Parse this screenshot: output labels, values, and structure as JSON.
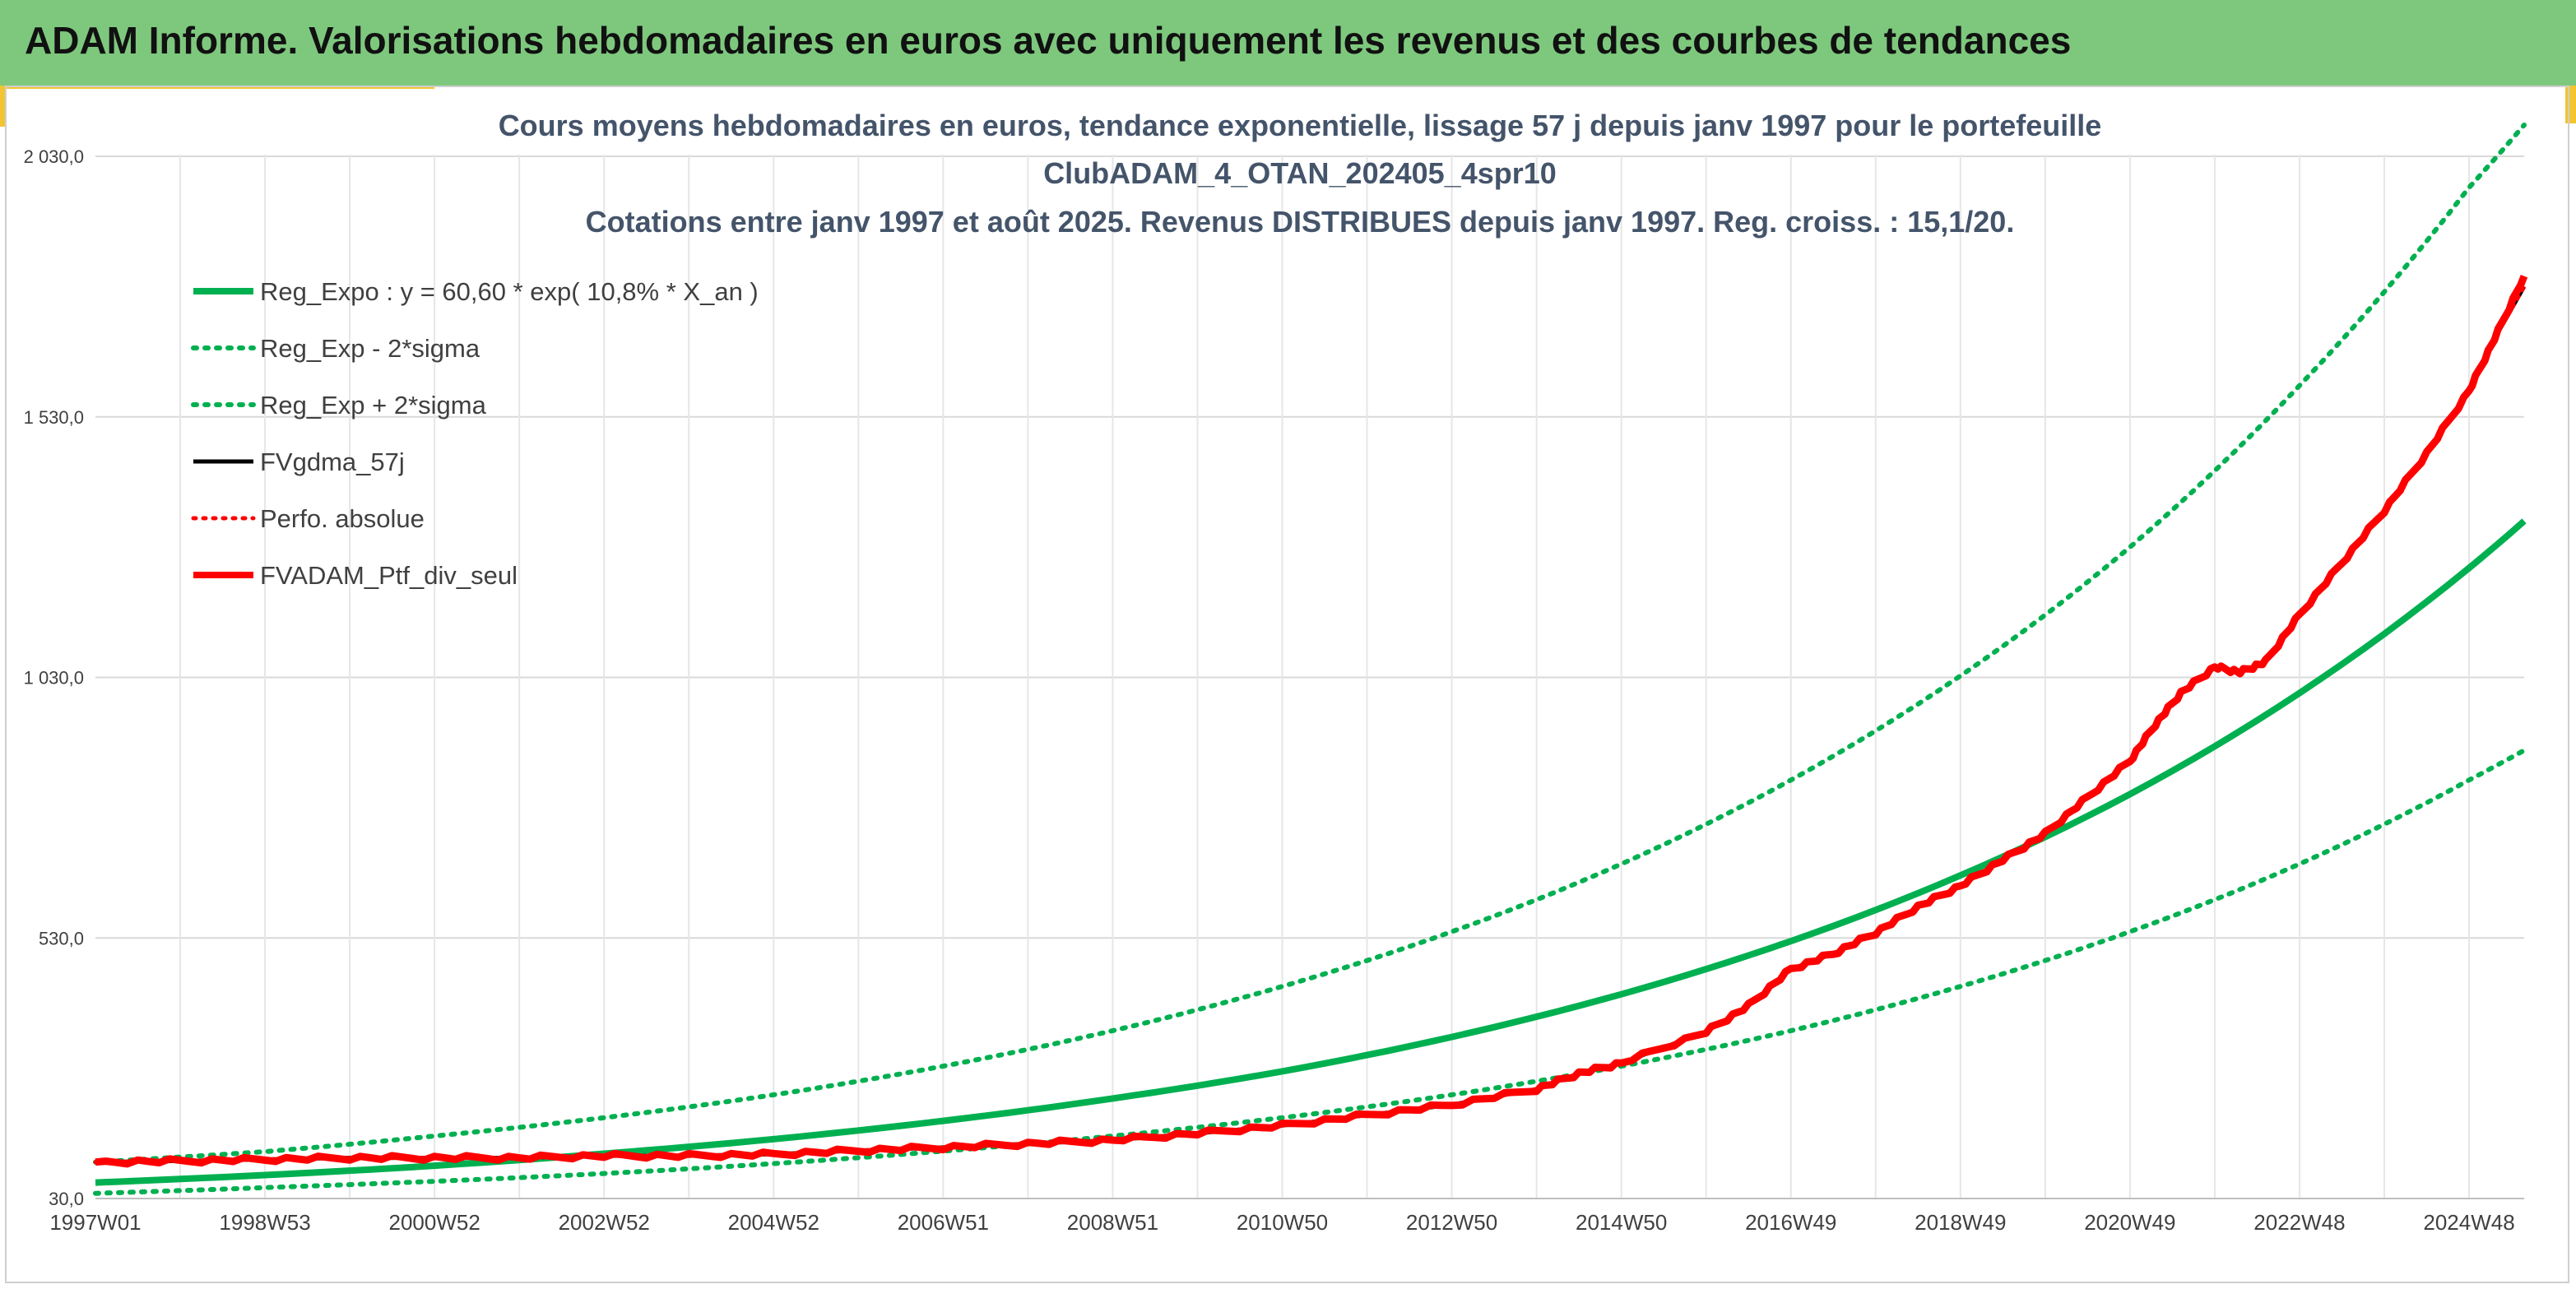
{
  "banner": {
    "title": "ADAM Informe. Valorisations hebdomadaires en euros avec uniquement les revenus et des courbes de tendances"
  },
  "colors": {
    "banner": "#7ec87e",
    "accent": "#f2c531",
    "green": "#00b050",
    "red": "#ff0000",
    "black": "#000000"
  },
  "chart_data": {
    "type": "line",
    "title_lines": [
      "Cours moyens hebdomadaires en euros, tendance exponentielle, lissage 57 j depuis janv 1997 pour le portefeuille",
      "ClubADAM_4_OTAN_202405_4spr10",
      "Cotations entre janv 1997 et août 2025. Revenus DISTRIBUES depuis janv 1997. Reg. croiss. : 15,1/20."
    ],
    "x_range": [
      1997.0,
      2025.65
    ],
    "x_tick_labels": [
      "1997W01",
      "1998W53",
      "2000W52",
      "2002W52",
      "2004W52",
      "2006W51",
      "2008W51",
      "2010W50",
      "2012W50",
      "2014W50",
      "2016W49",
      "2018W49",
      "2020W49",
      "2022W48",
      "2024W48"
    ],
    "x_tick_years": [
      1997.0,
      1999.0,
      2001.0,
      2003.0,
      2005.0,
      2007.0,
      2009.0,
      2011.0,
      2013.0,
      2015.0,
      2017.0,
      2019.0,
      2021.0,
      2023.0,
      2025.0
    ],
    "y_ticks": [
      30,
      530,
      1030,
      1530,
      2030
    ],
    "y_tick_labels": [
      "30,0",
      "530,0",
      "1 030,0",
      "1 530,0",
      "2 030,0"
    ],
    "ylim": [
      30,
      2030
    ],
    "grid": true,
    "legend_position": "top-left",
    "series": [
      {
        "name": "Reg_Expo : y = 60,60 * exp( 10,8% *  X_an )",
        "style": "solid-green",
        "x": [
          1997.0,
          1999.0,
          2001.0,
          2003.0,
          2005.0,
          2007.0,
          2009.0,
          2011.0,
          2013.0,
          2015.0,
          2017.0,
          2019.0,
          2021.0,
          2023.0,
          2025.0,
          2025.65
        ],
        "values": [
          60.6,
          75,
          93,
          116,
          144,
          179,
          222,
          274,
          340,
          422,
          524,
          650,
          806,
          1000,
          1240,
          1330
        ]
      },
      {
        "name": "Reg_Exp - 2*sigma",
        "style": "dotted-green",
        "x": [
          1997.0,
          1999.0,
          2001.0,
          2003.0,
          2005.0,
          2007.0,
          2009.0,
          2011.0,
          2013.0,
          2015.0,
          2017.0,
          2019.0,
          2021.0,
          2023.0,
          2025.0,
          2025.65
        ],
        "values": [
          40,
          51,
          63,
          78,
          97,
          121,
          150,
          185,
          229,
          284,
          352,
          437,
          542,
          672,
          833,
          890
        ]
      },
      {
        "name": "Reg_Exp + 2*sigma",
        "style": "dotted-green",
        "x": [
          1997.0,
          1999.0,
          2001.0,
          2003.0,
          2005.0,
          2007.0,
          2009.0,
          2011.0,
          2013.0,
          2015.0,
          2017.0,
          2019.0,
          2021.0,
          2023.0,
          2025.0,
          2025.65
        ],
        "values": [
          100,
          120,
          150,
          185,
          229,
          284,
          352,
          437,
          542,
          672,
          833,
          1033,
          1280,
          1590,
          1970,
          2090
        ]
      },
      {
        "name": "FVgdma_57j",
        "style": "solid-black",
        "x": [
          1997.0,
          1998.0,
          1999.0,
          2000.0,
          2001.0,
          2002.0,
          2003.0,
          2004.0,
          2005.0,
          2006.0,
          2007.0,
          2008.0,
          2009.0,
          2010.0,
          2011.0,
          2012.0,
          2013.0,
          2014.0,
          2014.5,
          2015.0,
          2016.0,
          2016.5,
          2017.0,
          2017.5,
          2018.0,
          2018.5,
          2019.0,
          2019.5,
          2020.0,
          2020.5,
          2021.0,
          2021.3,
          2021.6,
          2022.0,
          2022.3,
          2022.6,
          2023.0,
          2023.5,
          2024.0,
          2024.5,
          2025.0,
          2025.3,
          2025.65
        ],
        "values": [
          100,
          102,
          105,
          108,
          108,
          108,
          112,
          112,
          115,
          122,
          128,
          135,
          142,
          155,
          170,
          190,
          210,
          240,
          270,
          290,
          350,
          400,
          470,
          500,
          540,
          590,
          630,
          680,
          730,
          800,
          870,
          940,
          1000,
          1050,
          1040,
          1060,
          1150,
          1250,
          1350,
          1460,
          1580,
          1680,
          1780
        ]
      },
      {
        "name": "Perfo. absolue",
        "style": "dotted-red",
        "x": [
          1997.0,
          1998.0,
          1999.0,
          2000.0,
          2001.0,
          2002.0,
          2003.0,
          2004.0,
          2005.0,
          2006.0,
          2007.0,
          2008.0,
          2009.0,
          2010.0,
          2011.0,
          2012.0,
          2013.0,
          2014.0,
          2014.5,
          2015.0,
          2016.0,
          2016.5,
          2017.0,
          2017.5,
          2018.0,
          2018.5,
          2019.0,
          2019.5,
          2020.0,
          2020.5,
          2021.0,
          2021.3,
          2021.6,
          2022.0,
          2022.3,
          2022.6,
          2023.0,
          2023.5,
          2024.0,
          2024.5,
          2025.0,
          2025.3,
          2025.65
        ],
        "values": [
          100,
          102,
          105,
          108,
          108,
          108,
          112,
          112,
          115,
          122,
          128,
          135,
          142,
          155,
          170,
          190,
          210,
          240,
          270,
          290,
          350,
          400,
          470,
          500,
          540,
          590,
          630,
          680,
          730,
          800,
          870,
          940,
          1000,
          1050,
          1040,
          1060,
          1150,
          1250,
          1350,
          1460,
          1580,
          1680,
          1780
        ]
      },
      {
        "name": "FVADAM_Ptf_div_seul",
        "style": "solid-red",
        "x": [
          1997.0,
          1998.0,
          1999.0,
          2000.0,
          2001.0,
          2002.0,
          2003.0,
          2004.0,
          2005.0,
          2006.0,
          2007.0,
          2008.0,
          2009.0,
          2010.0,
          2011.0,
          2012.0,
          2013.0,
          2014.0,
          2014.5,
          2015.0,
          2016.0,
          2016.5,
          2017.0,
          2017.5,
          2018.0,
          2018.5,
          2019.0,
          2019.5,
          2020.0,
          2020.5,
          2021.0,
          2021.3,
          2021.6,
          2022.0,
          2022.3,
          2022.6,
          2023.0,
          2023.5,
          2024.0,
          2024.5,
          2025.0,
          2025.3,
          2025.65
        ],
        "values": [
          100,
          102,
          105,
          108,
          108,
          108,
          112,
          112,
          115,
          122,
          128,
          135,
          142,
          155,
          170,
          190,
          210,
          240,
          270,
          290,
          350,
          400,
          470,
          500,
          540,
          590,
          630,
          680,
          730,
          800,
          870,
          940,
          1000,
          1050,
          1040,
          1060,
          1150,
          1250,
          1350,
          1460,
          1580,
          1680,
          1800
        ]
      }
    ]
  }
}
